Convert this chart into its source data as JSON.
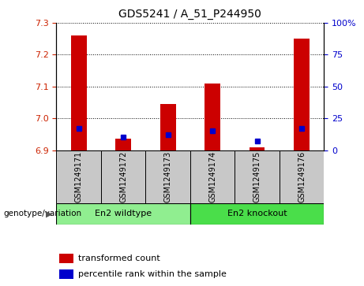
{
  "title": "GDS5241 / A_51_P244950",
  "samples": [
    "GSM1249171",
    "GSM1249172",
    "GSM1249173",
    "GSM1249174",
    "GSM1249175",
    "GSM1249176"
  ],
  "red_values": [
    7.26,
    6.935,
    7.045,
    7.11,
    6.91,
    7.25
  ],
  "blue_values_pct": [
    17,
    10,
    12,
    15,
    7,
    17
  ],
  "ylim_left": [
    6.9,
    7.3
  ],
  "ylim_right": [
    0,
    100
  ],
  "yticks_left": [
    6.9,
    7.0,
    7.1,
    7.2,
    7.3
  ],
  "yticks_right": [
    0,
    25,
    50,
    75,
    100
  ],
  "ytick_labels_right": [
    "0",
    "25",
    "50",
    "75",
    "100%"
  ],
  "bar_base": 6.9,
  "groups": [
    {
      "label": "En2 wildtype",
      "span": [
        0,
        3
      ],
      "color": "#90EE90"
    },
    {
      "label": "En2 knockout",
      "span": [
        3,
        6
      ],
      "color": "#4ADE4A"
    }
  ],
  "group_label_prefix": "genotype/variation",
  "legend_red": "transformed count",
  "legend_blue": "percentile rank within the sample",
  "bar_width": 0.35,
  "red_color": "#CC0000",
  "blue_color": "#0000CC",
  "bg_color": "#C8C8C8",
  "plot_bg": "#FFFFFF",
  "left_tick_color": "#CC2200",
  "right_tick_color": "#0000CC"
}
